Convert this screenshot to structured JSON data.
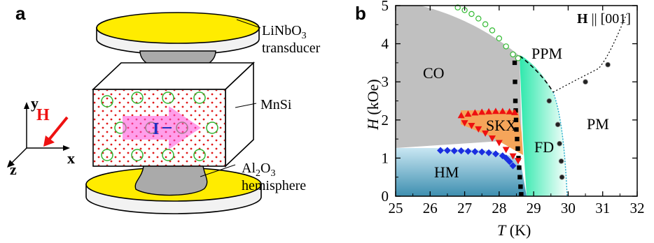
{
  "panel_a": {
    "letter": "a",
    "label_transducer_1": "LiNbO",
    "label_transducer_sub": "3",
    "label_transducer_2": "transducer",
    "label_sample": "MnSi",
    "label_hemi_1": "Al",
    "label_hemi_sub1": "2",
    "label_hemi_mid": "O",
    "label_hemi_sub2": "3",
    "label_hemi_2": "hemisphere",
    "field_label": "H",
    "current_label": "I",
    "axis_x": "x",
    "axis_y": "y",
    "axis_z": "z"
  },
  "panel_b": {
    "letter": "b",
    "field_dir_bold": "H",
    "field_dir_rest": " || [001]"
  },
  "chart_data": {
    "type": "scatter",
    "xlabel_var": "T",
    "xlabel_unit": " (K)",
    "ylabel_var": "H",
    "ylabel_unit": " (kOe)",
    "xlim": [
      25,
      32
    ],
    "ylim": [
      0,
      5
    ],
    "x_ticks": [
      "25",
      "26",
      "27",
      "28",
      "29",
      "30",
      "31",
      "32"
    ],
    "y_ticks": [
      "0",
      "1",
      "2",
      "3",
      "4",
      "5"
    ],
    "regions": {
      "CO": "CO",
      "PPM": "PPM",
      "SKX": "SKX",
      "FD": "FD",
      "HM": "HM",
      "PM": "PM"
    },
    "colors": {
      "CO": "#c0c0c0",
      "HM_top": "#c8e6f2",
      "HM_bottom": "#4a9dbb",
      "SKX": "#f5a55a",
      "FD_left": "#3fe8b2",
      "FD_right": "#ffffff",
      "sq": "#000000",
      "diamond": "#1a2ee0",
      "tri": "#ee1111",
      "open_circle": "#33bb33",
      "filled_circle": "#222222"
    },
    "series": [
      {
        "marker": "open-circle",
        "x": [
          26.8,
          27.0,
          27.2,
          27.4,
          27.6,
          27.8,
          28.0,
          28.2,
          28.4,
          28.55
        ],
        "y": [
          4.95,
          4.88,
          4.78,
          4.66,
          4.51,
          4.35,
          4.14,
          3.93,
          3.72,
          3.62
        ]
      },
      {
        "marker": "square",
        "x": [
          28.45,
          28.46,
          28.47,
          28.48,
          28.49,
          28.5,
          28.52,
          28.54,
          28.56,
          28.58,
          28.6,
          28.62,
          28.64
        ],
        "y": [
          3.5,
          3.0,
          2.5,
          2.25,
          2.0,
          1.75,
          1.5,
          1.25,
          1.0,
          0.75,
          0.5,
          0.25,
          0.05
        ]
      },
      {
        "marker": "diamond",
        "x": [
          26.3,
          26.5,
          26.7,
          26.9,
          27.1,
          27.3,
          27.5,
          27.7,
          27.9,
          28.1,
          28.2,
          28.3,
          28.4
        ],
        "y": [
          1.2,
          1.2,
          1.19,
          1.19,
          1.18,
          1.17,
          1.16,
          1.14,
          1.11,
          1.06,
          1.0,
          0.91,
          0.8
        ]
      },
      {
        "marker": "triangle-up",
        "x": [
          26.9,
          27.1,
          27.3,
          27.5,
          27.7,
          27.9,
          28.1,
          28.3,
          28.45
        ],
        "y": [
          2.12,
          2.16,
          2.19,
          2.21,
          2.22,
          2.23,
          2.23,
          2.22,
          2.2
        ]
      },
      {
        "marker": "triangle-down",
        "x": [
          27.0,
          27.2,
          27.4,
          27.6,
          27.8,
          28.0,
          28.2,
          28.4,
          28.55
        ],
        "y": [
          1.92,
          1.85,
          1.76,
          1.65,
          1.52,
          1.4,
          1.22,
          1.05,
          0.93
        ]
      },
      {
        "marker": "filled-circle",
        "x": [
          29.45,
          29.7,
          29.75,
          29.8,
          29.82,
          30.5,
          31.15
        ],
        "y": [
          2.5,
          1.88,
          1.38,
          0.92,
          0.5,
          3.0,
          3.45
        ]
      }
    ]
  }
}
